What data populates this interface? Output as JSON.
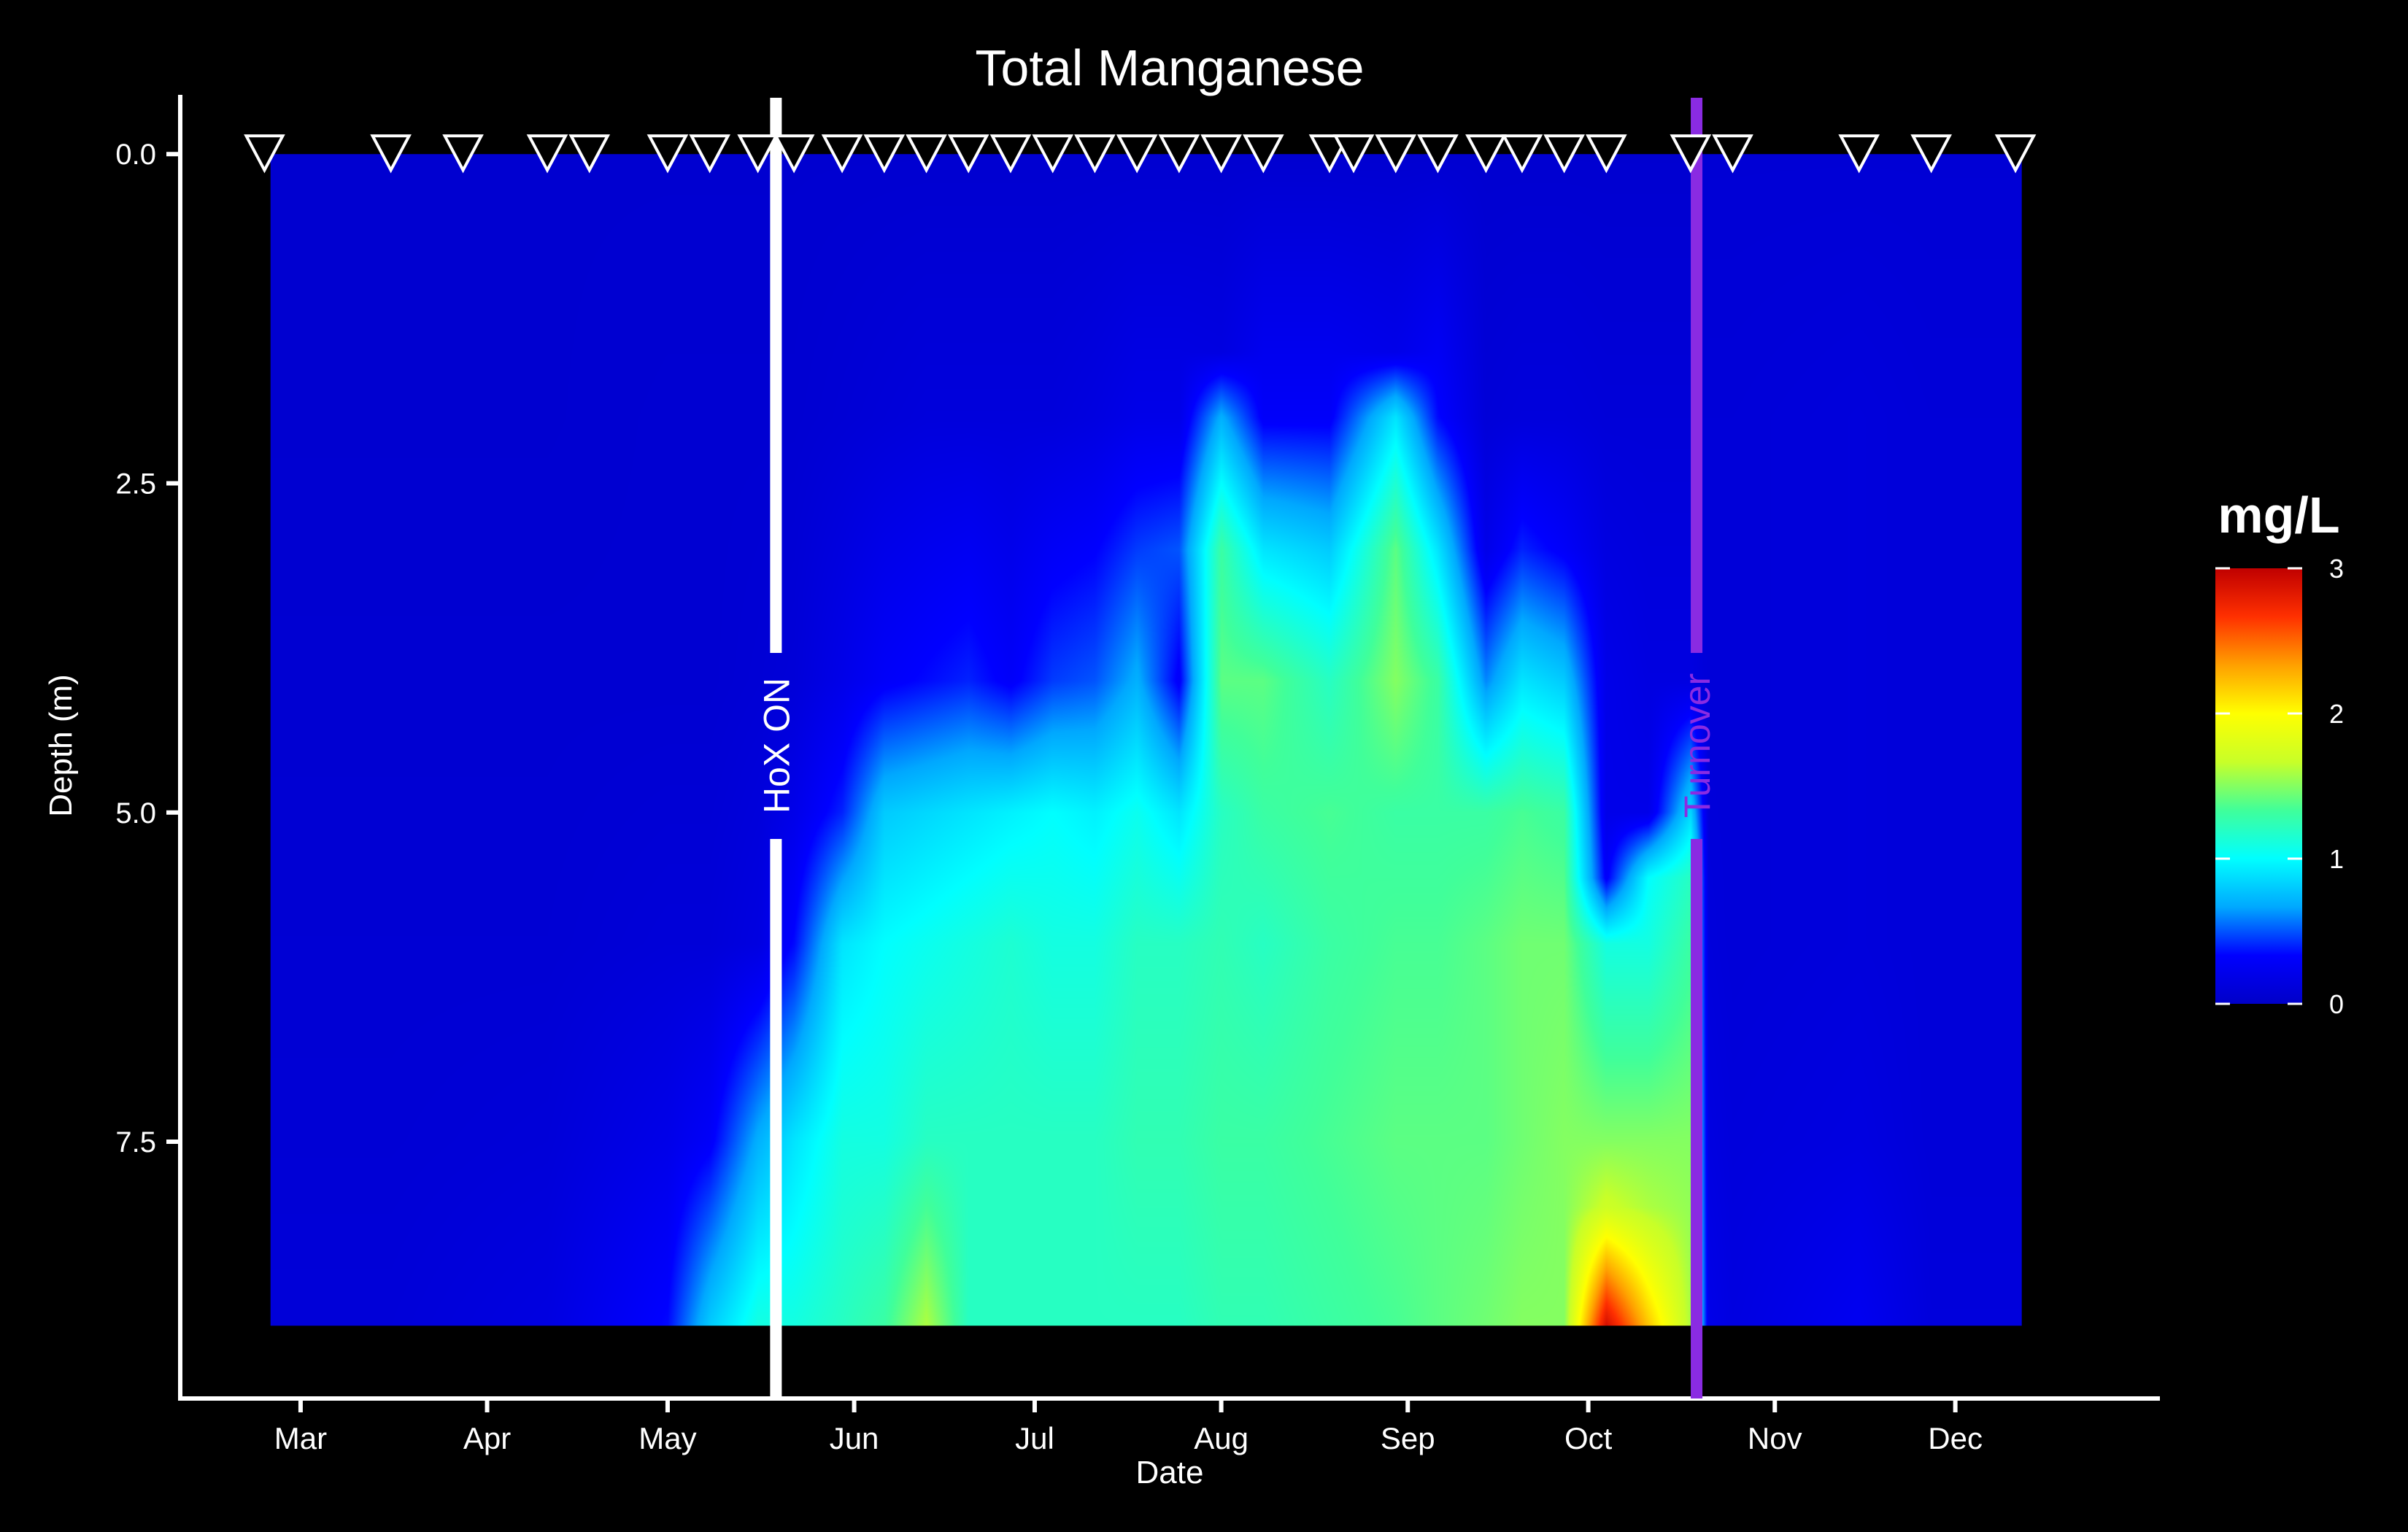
{
  "chart_data": {
    "type": "heatmap",
    "title": "Total Manganese",
    "xlabel": "Date",
    "ylabel": "Depth (m)",
    "x_ticks": [
      {
        "label": "Mar",
        "day": 60
      },
      {
        "label": "Apr",
        "day": 91
      },
      {
        "label": "May",
        "day": 121
      },
      {
        "label": "Jun",
        "day": 152
      },
      {
        "label": "Jul",
        "day": 182
      },
      {
        "label": "Aug",
        "day": 213
      },
      {
        "label": "Sep",
        "day": 244
      },
      {
        "label": "Oct",
        "day": 274
      },
      {
        "label": "Nov",
        "day": 305
      },
      {
        "label": "Dec",
        "day": 335
      }
    ],
    "x_range_day": [
      40,
      369
    ],
    "data_range_day": [
      55,
      346
    ],
    "y_ticks": [
      {
        "label": "0.0",
        "value": 0.0
      },
      {
        "label": "2.5",
        "value": 2.5
      },
      {
        "label": "5.0",
        "value": 5.0
      },
      {
        "label": "7.5",
        "value": 7.5
      }
    ],
    "y_range": [
      -0.45,
      9.45
    ],
    "depth_max": 8.9,
    "colorbar": {
      "title": "mg/L",
      "min": 0,
      "max": 3,
      "ticks": [
        "0",
        "1",
        "2",
        "3"
      ],
      "colors": [
        "#0000c8",
        "#0000ff",
        "#00a8ff",
        "#00ffff",
        "#40ff9a",
        "#c8ff28",
        "#ffff00",
        "#ffa000",
        "#ff3000",
        "#c00000"
      ]
    },
    "events": [
      {
        "label": "HoX ON",
        "day": 139,
        "color": "#ffffff"
      },
      {
        "label": "Turnover",
        "day": 292,
        "color": "#8a2be2"
      }
    ],
    "sample_days": [
      54,
      75,
      87,
      101,
      108,
      121,
      128,
      136,
      142,
      150,
      157,
      164,
      171,
      178,
      185,
      192,
      199,
      206,
      213,
      220,
      231,
      235,
      242,
      249,
      257,
      263,
      270,
      277,
      291,
      298,
      319,
      331,
      345
    ],
    "profiles": [
      {
        "day": 55,
        "depths": [
          0,
          2,
          4,
          6,
          7.5,
          8.9
        ],
        "values": [
          0.05,
          0.05,
          0.06,
          0.07,
          0.08,
          0.1
        ]
      },
      {
        "day": 75,
        "depths": [
          0,
          2,
          4,
          6,
          7.5,
          8.9
        ],
        "values": [
          0.05,
          0.05,
          0.06,
          0.07,
          0.08,
          0.1
        ]
      },
      {
        "day": 101,
        "depths": [
          0,
          2,
          4,
          6,
          7.5,
          8.9
        ],
        "values": [
          0.05,
          0.05,
          0.06,
          0.07,
          0.1,
          0.15
        ]
      },
      {
        "day": 121,
        "depths": [
          0,
          2,
          4,
          6,
          7.5,
          8.9
        ],
        "values": [
          0.05,
          0.06,
          0.06,
          0.1,
          0.2,
          0.35
        ]
      },
      {
        "day": 128,
        "depths": [
          0,
          2,
          4,
          6,
          7.5,
          8.9
        ],
        "values": [
          0.05,
          0.06,
          0.06,
          0.1,
          0.3,
          0.8
        ]
      },
      {
        "day": 136,
        "depths": [
          0,
          2,
          4,
          6,
          7.5,
          8.9
        ],
        "values": [
          0.05,
          0.06,
          0.08,
          0.15,
          0.7,
          1.1
        ]
      },
      {
        "day": 142,
        "depths": [
          0,
          2,
          4,
          5,
          6,
          7.5,
          8.9
        ],
        "values": [
          0.05,
          0.06,
          0.1,
          0.2,
          0.35,
          0.9,
          1.1
        ]
      },
      {
        "day": 150,
        "depths": [
          0,
          2,
          4,
          5,
          6,
          7.5,
          8.9
        ],
        "values": [
          0.05,
          0.08,
          0.2,
          0.4,
          0.9,
          1.1,
          1.2
        ]
      },
      {
        "day": 157,
        "depths": [
          0,
          2,
          4,
          5,
          6,
          7.5,
          8.9
        ],
        "values": [
          0.05,
          0.1,
          0.3,
          0.8,
          1.0,
          1.1,
          1.3
        ]
      },
      {
        "day": 164,
        "depths": [
          0,
          2,
          4,
          5,
          6,
          7.5,
          8.9
        ],
        "values": [
          0.05,
          0.12,
          0.35,
          0.85,
          1.05,
          1.2,
          1.6
        ]
      },
      {
        "day": 171,
        "depths": [
          0,
          2,
          4,
          5,
          6,
          7.5,
          8.9
        ],
        "values": [
          0.05,
          0.12,
          0.4,
          0.9,
          1.1,
          1.2,
          1.2
        ]
      },
      {
        "day": 178,
        "depths": [
          0,
          2,
          4,
          5,
          6,
          7.5,
          8.9
        ],
        "values": [
          0.05,
          0.12,
          0.3,
          0.95,
          1.15,
          1.2,
          1.2
        ]
      },
      {
        "day": 185,
        "depths": [
          0,
          2,
          4,
          5,
          6,
          7.5,
          8.9
        ],
        "values": [
          0.05,
          0.12,
          0.45,
          1.0,
          1.1,
          1.2,
          1.2
        ]
      },
      {
        "day": 192,
        "depths": [
          0,
          2,
          4,
          5,
          6,
          7.5,
          8.9
        ],
        "values": [
          0.05,
          0.15,
          0.5,
          0.95,
          1.1,
          1.2,
          1.2
        ]
      },
      {
        "day": 199,
        "depths": [
          0,
          2,
          4,
          5,
          6,
          7.5,
          8.9
        ],
        "values": [
          0.05,
          0.2,
          0.7,
          1.05,
          1.2,
          1.25,
          1.2
        ]
      },
      {
        "day": 206,
        "depths": [
          0,
          2,
          3,
          4,
          5,
          6,
          7.5,
          8.9
        ],
        "values": [
          0.05,
          0.2,
          0.5,
          0.3,
          0.9,
          1.2,
          1.25,
          1.2
        ]
      },
      {
        "day": 213,
        "depths": [
          0,
          1.5,
          2,
          3,
          4,
          5,
          6,
          7.5,
          8.9
        ],
        "values": [
          0.05,
          0.15,
          0.7,
          1.3,
          1.4,
          1.2,
          1.25,
          1.3,
          1.25
        ]
      },
      {
        "day": 220,
        "depths": [
          0,
          2,
          3,
          4,
          5,
          6,
          7.5,
          8.9
        ],
        "values": [
          0.05,
          0.3,
          0.9,
          1.4,
          1.3,
          1.2,
          1.3,
          1.25
        ]
      },
      {
        "day": 231,
        "depths": [
          0,
          2,
          3,
          4,
          5,
          6,
          7.5,
          8.9
        ],
        "values": [
          0.05,
          0.3,
          0.8,
          1.2,
          1.35,
          1.3,
          1.35,
          1.3
        ]
      },
      {
        "day": 242,
        "depths": [
          0,
          1.5,
          2,
          3,
          4,
          5,
          6,
          7.5,
          8.9
        ],
        "values": [
          0.05,
          0.2,
          0.9,
          1.4,
          1.5,
          1.3,
          1.35,
          1.4,
          1.35
        ]
      },
      {
        "day": 249,
        "depths": [
          0,
          2,
          3,
          4,
          5,
          6,
          7.5,
          8.9
        ],
        "values": [
          0.05,
          0.35,
          0.9,
          1.3,
          1.3,
          1.35,
          1.4,
          1.4
        ]
      },
      {
        "day": 257,
        "depths": [
          0,
          2,
          3,
          4,
          5,
          6,
          7.5,
          8.9
        ],
        "values": [
          0.05,
          0.1,
          0.2,
          0.6,
          1.3,
          1.4,
          1.4,
          1.45
        ]
      },
      {
        "day": 263,
        "depths": [
          0,
          2,
          3,
          4,
          5,
          6,
          7.5,
          8.9
        ],
        "values": [
          0.05,
          0.12,
          0.4,
          0.9,
          1.35,
          1.45,
          1.45,
          1.5
        ]
      },
      {
        "day": 270,
        "depths": [
          0,
          2,
          3,
          4,
          5,
          6,
          7.5,
          8.9
        ],
        "values": [
          0.05,
          0.12,
          0.3,
          0.8,
          1.3,
          1.45,
          1.5,
          1.5
        ]
      },
      {
        "day": 277,
        "depths": [
          0,
          2,
          4,
          5,
          5.5,
          6,
          7.5,
          8.0,
          8.9
        ],
        "values": [
          0.05,
          0.1,
          0.2,
          0.2,
          0.3,
          1.1,
          1.5,
          1.7,
          2.9
        ]
      },
      {
        "day": 284,
        "depths": [
          0,
          2,
          4,
          5,
          5.5,
          6,
          7.5,
          8.0,
          8.9
        ],
        "values": [
          0.05,
          0.1,
          0.15,
          0.2,
          1.0,
          1.1,
          1.5,
          1.6,
          2.2
        ]
      },
      {
        "day": 291,
        "depths": [
          0,
          2,
          4,
          5.5,
          6,
          7.5,
          8.9
        ],
        "values": [
          0.05,
          0.1,
          0.15,
          1.2,
          1.3,
          1.5,
          1.6
        ]
      },
      {
        "day": 294,
        "depths": [
          0,
          2,
          4,
          6,
          7.5,
          8.9
        ],
        "values": [
          0.08,
          0.1,
          0.1,
          0.12,
          0.15,
          0.2
        ]
      },
      {
        "day": 298,
        "depths": [
          0,
          2,
          4,
          6,
          7.5,
          8.9
        ],
        "values": [
          0.08,
          0.1,
          0.1,
          0.1,
          0.12,
          0.15
        ]
      },
      {
        "day": 319,
        "depths": [
          0,
          2,
          4,
          6,
          7.5,
          8.9
        ],
        "values": [
          0.08,
          0.12,
          0.12,
          0.12,
          0.15,
          0.25
        ]
      },
      {
        "day": 331,
        "depths": [
          0,
          2,
          4,
          6,
          7.5,
          8.9
        ],
        "values": [
          0.08,
          0.1,
          0.1,
          0.1,
          0.1,
          0.12
        ]
      },
      {
        "day": 346,
        "depths": [
          0,
          2,
          4,
          6,
          7.5,
          8.9
        ],
        "values": [
          0.08,
          0.1,
          0.1,
          0.1,
          0.1,
          0.12
        ]
      }
    ]
  }
}
